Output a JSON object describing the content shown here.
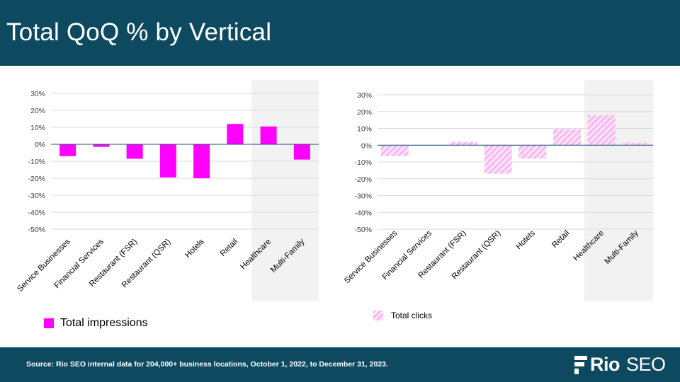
{
  "title": "Total QoQ % by Vertical",
  "source": "Source: Rio SEO internal data for 204,000+ business locations, October 1, 2022, to December 31, 2023.",
  "logo": {
    "brand_bold": "Rio",
    "brand_light": "SEO",
    "mark_icon": "rio-seo-logo-icon"
  },
  "colors": {
    "header_bg": "#0d4a60",
    "impressions": "#ff00ff",
    "clicks": "#f7c7f2",
    "highlight_bg": "#f2f2f2"
  },
  "chart_data": [
    {
      "type": "bar",
      "categories": [
        "Service Businesses",
        "Financial Services",
        "Restaurant (FSR)",
        "Restaurant (QSR)",
        "Hotels",
        "Retail",
        "Healthcare",
        "Multi-Family"
      ],
      "series": [
        {
          "name": "Total impressions",
          "values": [
            -7,
            -1.5,
            -8.5,
            -19.5,
            -20,
            12,
            10.5,
            -9
          ]
        }
      ],
      "ylim": [
        -50,
        30
      ],
      "yticks": [
        30,
        20,
        10,
        0,
        -10,
        -20,
        -30,
        -40,
        -50
      ],
      "ytick_labels": [
        "30%",
        "20%",
        "10%",
        "0%",
        "-10%",
        "-20%",
        "-30%",
        "-40%",
        "-50%"
      ],
      "highlight_categories": [
        "Healthcare",
        "Multi-Family"
      ],
      "grid": true,
      "legend": "bottom-left"
    },
    {
      "type": "bar",
      "categories": [
        "Service Businesses",
        "Financial Services",
        "Restaurant (FSR)",
        "Restaurant (QSR)",
        "Hotels",
        "Retail",
        "Healthcare",
        "Multi-Family"
      ],
      "series": [
        {
          "name": "Total clicks",
          "values": [
            -6.5,
            0,
            2,
            -17,
            -8,
            9.5,
            18,
            1.5
          ]
        }
      ],
      "ylim": [
        -50,
        30
      ],
      "yticks": [
        30,
        20,
        10,
        0,
        -10,
        -20,
        -30,
        -40,
        -50
      ],
      "ytick_labels": [
        "30%",
        "20%",
        "10%",
        "0%",
        "-10%",
        "-20%",
        "-30%",
        "-40%",
        "-50%"
      ],
      "highlight_categories": [
        "Healthcare",
        "Multi-Family"
      ],
      "grid": true,
      "legend": "bottom-left"
    }
  ]
}
